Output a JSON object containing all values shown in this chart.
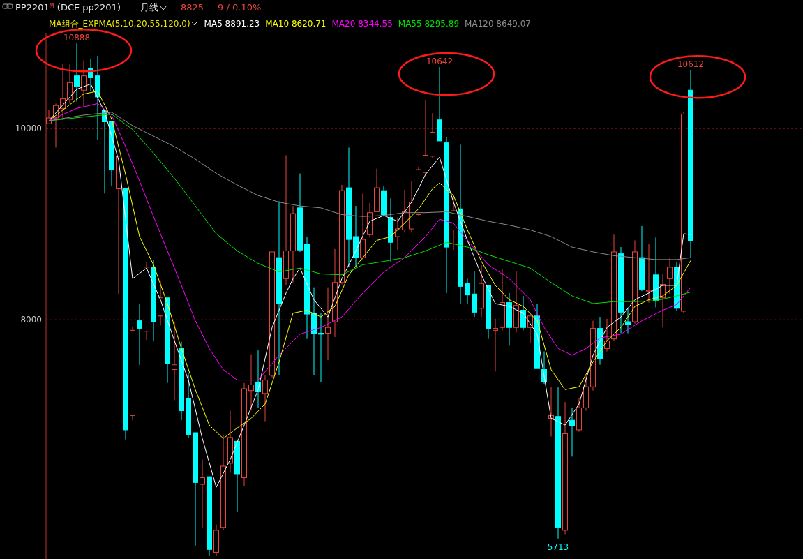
{
  "chart_data": {
    "type": "candlestick",
    "title": "PP2201$^{M}$ (DCE pp2201)",
    "subtitle": "月线",
    "legend_title": "MA组合_EXPMA(5,10,20,55,120,0)",
    "legend": "top left",
    "grid": "y",
    "ylim": [
      5500,
      11000
    ],
    "yticks": [
      8000,
      10000
    ],
    "annotations": [
      "8825",
      "9 / 0.10%",
      {
        "text": "10888",
        "y": 10888
      },
      {
        "text": "10642",
        "y": 10642
      },
      {
        "text": "10612",
        "y": 10612
      },
      {
        "text": "5713",
        "y": 5713
      }
    ],
    "categories": [
      null,
      null,
      null,
      null,
      null,
      null,
      null,
      null,
      null,
      null,
      null,
      null,
      null,
      null,
      null,
      null,
      null,
      null,
      null,
      null,
      null,
      null,
      null,
      null,
      null,
      null,
      null,
      null,
      null,
      null,
      null,
      null,
      null,
      null,
      null,
      null,
      null,
      null,
      null,
      null,
      null,
      null,
      null,
      null,
      null,
      null,
      null,
      null,
      null,
      null,
      null,
      null,
      null,
      null,
      null,
      null,
      null,
      null,
      null,
      null,
      null,
      null,
      null,
      null,
      null,
      null,
      null,
      null,
      null,
      null,
      null,
      null,
      null,
      null,
      null,
      null,
      null,
      null,
      null,
      null,
      null,
      null,
      null,
      null,
      null,
      null,
      null,
      null,
      null,
      null,
      null,
      null,
      null
    ],
    "ohlc": [
      [
        10050,
        10190,
        10040,
        10110
      ],
      [
        10110,
        10260,
        9800,
        10240
      ],
      [
        10210,
        10680,
        10090,
        10310
      ],
      [
        10300,
        10670,
        10260,
        10480
      ],
      [
        10550,
        10888,
        10280,
        10440
      ],
      [
        10400,
        10710,
        10230,
        10550
      ],
      [
        10630,
        10730,
        10390,
        10530
      ],
      [
        10550,
        10760,
        9880,
        10330
      ],
      [
        10190,
        10190,
        9320,
        10070
      ],
      [
        10070,
        10070,
        9400,
        9570
      ],
      [
        9370,
        9710,
        8270,
        9710
      ],
      [
        9370,
        9370,
        6750,
        6850
      ],
      [
        7000,
        7930,
        6950,
        7890
      ],
      [
        7990,
        8170,
        7530,
        7910
      ],
      [
        7880,
        8600,
        7790,
        8550
      ],
      [
        8550,
        8630,
        7780,
        7980
      ],
      [
        8040,
        8410,
        7940,
        8230
      ],
      [
        8230,
        8230,
        7340,
        7540
      ],
      [
        7480,
        7980,
        7160,
        7530
      ],
      [
        7700,
        7770,
        6950,
        7050
      ],
      [
        7180,
        7440,
        6760,
        6800
      ],
      [
        6820,
        6820,
        5640,
        6300
      ],
      [
        6280,
        6540,
        5830,
        6350
      ],
      [
        6360,
        6360,
        5530,
        5600
      ],
      [
        5570,
        5860,
        5530,
        5800
      ],
      [
        5830,
        6800,
        5800,
        6470
      ],
      [
        6500,
        7050,
        6400,
        6770
      ],
      [
        6730,
        6750,
        5990,
        6390
      ],
      [
        6350,
        7340,
        6260,
        7280
      ],
      [
        7260,
        7640,
        7050,
        7320
      ],
      [
        7350,
        7680,
        7080,
        7250
      ],
      [
        7230,
        7420,
        6940,
        7370
      ],
      [
        7420,
        8710,
        7400,
        8710
      ],
      [
        8650,
        9240,
        7420,
        8170
      ],
      [
        8430,
        9720,
        8360,
        8720
      ],
      [
        8720,
        9190,
        8390,
        9110
      ],
      [
        9170,
        9530,
        8710,
        8730
      ],
      [
        8790,
        8870,
        7800,
        8060
      ],
      [
        8070,
        8340,
        7420,
        7860
      ],
      [
        7860,
        8070,
        7350,
        7850
      ],
      [
        7860,
        8340,
        7580,
        7920
      ],
      [
        7980,
        8740,
        7820,
        8390
      ],
      [
        8390,
        9410,
        8370,
        9350
      ],
      [
        9380,
        9800,
        8550,
        8840
      ],
      [
        8870,
        9190,
        8550,
        8650
      ],
      [
        8650,
        9320,
        8620,
        8840
      ],
      [
        8890,
        9220,
        8860,
        9120
      ],
      [
        9130,
        9580,
        9120,
        9380
      ],
      [
        9350,
        9400,
        9080,
        9100
      ],
      [
        9070,
        9270,
        8600,
        8810
      ],
      [
        8870,
        9070,
        8730,
        8950
      ],
      [
        8940,
        9360,
        8910,
        9130
      ],
      [
        8950,
        9450,
        8910,
        9230
      ],
      [
        9100,
        9600,
        9080,
        9570
      ],
      [
        9540,
        10300,
        9520,
        9720
      ],
      [
        9710,
        10160,
        9690,
        9960
      ],
      [
        10090,
        10642,
        9860,
        9870
      ],
      [
        9850,
        9910,
        8280,
        8760
      ],
      [
        8940,
        9290,
        8730,
        9140
      ],
      [
        9160,
        9830,
        8170,
        8350
      ],
      [
        8380,
        8430,
        8170,
        8260
      ],
      [
        8270,
        8510,
        8030,
        8080
      ],
      [
        8120,
        8570,
        8030,
        8380
      ],
      [
        8360,
        8360,
        7800,
        7910
      ],
      [
        7890,
        8010,
        7460,
        7910
      ],
      [
        7920,
        8530,
        7890,
        8180
      ],
      [
        8180,
        8280,
        7730,
        7920
      ],
      [
        7920,
        8510,
        7870,
        8150
      ],
      [
        8100,
        8250,
        7890,
        7920
      ],
      [
        7920,
        8050,
        7760,
        8040
      ],
      [
        8040,
        8170,
        7480,
        7490
      ],
      [
        7480,
        7670,
        7330,
        7350
      ],
      [
        6970,
        7300,
        6780,
        7000
      ],
      [
        6990,
        7300,
        5713,
        5830
      ],
      [
        5800,
        7140,
        5760,
        6810
      ],
      [
        6950,
        7080,
        6570,
        6890
      ],
      [
        6850,
        7180,
        6830,
        7080
      ],
      [
        7080,
        7420,
        7050,
        7300
      ],
      [
        7300,
        7990,
        7260,
        7910
      ],
      [
        7910,
        8030,
        7530,
        7590
      ],
      [
        7700,
        8010,
        7670,
        7780
      ],
      [
        7800,
        8890,
        7780,
        8710
      ],
      [
        8690,
        8760,
        7860,
        8080
      ],
      [
        7980,
        8120,
        7860,
        7950
      ],
      [
        7980,
        8830,
        7960,
        8710
      ],
      [
        8650,
        8980,
        8300,
        8320
      ],
      [
        8300,
        8790,
        8180,
        8310
      ],
      [
        8470,
        8860,
        8130,
        8200
      ],
      [
        8230,
        8480,
        7920,
        8370
      ],
      [
        8430,
        8650,
        8270,
        8550
      ],
      [
        8550,
        8600,
        8090,
        8120
      ],
      [
        8090,
        10170,
        8070,
        10150
      ],
      [
        10400,
        10612,
        8650,
        8825
      ]
    ],
    "colors": [
      "#e8453c",
      "#e8453c",
      "#e8453c",
      "#e8453c",
      "#00ffff",
      "#e8453c",
      "#00ffff",
      "#00ffff",
      "#00ffff",
      "#00ffff",
      "#e8453c",
      "#00ffff",
      "#e8453c",
      "#00ffff",
      "#e8453c",
      "#00ffff",
      "#e8453c",
      "#00ffff",
      "#e8453c",
      "#00ffff",
      "#00ffff",
      "#00ffff",
      "#e8453c",
      "#00ffff",
      "#e8453c",
      "#e8453c",
      "#e8453c",
      "#00ffff",
      "#e8453c",
      "#e8453c",
      "#00ffff",
      "#e8453c",
      "#e8453c",
      "#00ffff",
      "#e8453c",
      "#e8453c",
      "#00ffff",
      "#00ffff",
      "#00ffff",
      "#00ffff",
      "#e8453c",
      "#e8453c",
      "#e8453c",
      "#00ffff",
      "#00ffff",
      "#e8453c",
      "#e8453c",
      "#e8453c",
      "#00ffff",
      "#00ffff",
      "#e8453c",
      "#e8453c",
      "#e8453c",
      "#e8453c",
      "#e8453c",
      "#e8453c",
      "#00ffff",
      "#00ffff",
      "#e8453c",
      "#00ffff",
      "#00ffff",
      "#00ffff",
      "#e8453c",
      "#00ffff",
      "#e8453c",
      "#e8453c",
      "#00ffff",
      "#e8453c",
      "#00ffff",
      "#e8453c",
      "#00ffff",
      "#00ffff",
      "#e8453c",
      "#00ffff",
      "#e8453c",
      "#00ffff",
      "#e8453c",
      "#e8453c",
      "#e8453c",
      "#00ffff",
      "#e8453c",
      "#e8453c",
      "#00ffff",
      "#00ffff",
      "#e8453c",
      "#00ffff",
      "#e8453c",
      "#00ffff",
      "#e8453c",
      "#e8453c",
      "#00ffff",
      "#e8453c",
      "#00ffff"
    ],
    "series": [
      {
        "type": "line",
        "name": "MA5 8891.23",
        "color": "#ffffff",
        "values": [
          10080,
          null,
          null,
          null,
          10410,
          null,
          10465,
          null,
          10175,
          null,
          9670,
          null,
          8430,
          null,
          8540,
          null,
          8210,
          null,
          7780,
          null,
          7370,
          null,
          6760,
          null,
          6250,
          null,
          6540,
          null,
          6900,
          null,
          7270,
          null,
          7920,
          null,
          8280,
          8430,
          8540,
          null,
          8210,
          null,
          8030,
          null,
          8430,
          null,
          8720,
          null,
          9030,
          null,
          9090,
          null,
          9030,
          null,
          9230,
          null,
          9520,
          null,
          9700,
          null,
          9230,
          null,
          8830,
          null,
          8470,
          null,
          8170,
          null,
          8140,
          null,
          8070,
          null,
          7850,
          null,
          6970,
          null,
          6900,
          null,
          7120,
          null,
          7630,
          null,
          7920,
          null,
          8030,
          null,
          8210,
          null,
          8280,
          null,
          8360,
          null,
          8360,
          8900,
          8891
        ]
      },
      {
        "type": "line",
        "name": "MA10 8620.71",
        "color": "#ffff00",
        "values": [
          10080,
          null,
          null,
          null,
          null,
          10360,
          null,
          10390,
          null,
          10100,
          null,
          9520,
          null,
          8870,
          null,
          8575,
          null,
          8170,
          null,
          7700,
          null,
          7270,
          null,
          6900,
          null,
          6760,
          null,
          6870,
          null,
          6970,
          null,
          7120,
          null,
          7560,
          null,
          8070,
          null,
          8100,
          null,
          8030,
          null,
          8140,
          null,
          8470,
          null,
          8650,
          null,
          8830,
          null,
          8870,
          null,
          9010,
          null,
          9160,
          null,
          9370,
          9430,
          null,
          9300,
          null,
          8940,
          null,
          8610,
          null,
          8360,
          null,
          8210,
          null,
          8140,
          null,
          7990,
          null,
          7480,
          null,
          7270,
          null,
          7300,
          null,
          7560,
          null,
          7780,
          null,
          7920,
          null,
          8140,
          null,
          8210,
          null,
          8250,
          null,
          8360,
          null,
          8620
        ]
      },
      {
        "type": "line",
        "name": "MA20 8344.55",
        "color": "#ff00ff",
        "values": [
          10080,
          null,
          null,
          null,
          10210,
          null,
          null,
          10260,
          null,
          10140,
          null,
          9810,
          null,
          9450,
          null,
          9080,
          null,
          8720,
          null,
          8360,
          null,
          7990,
          null,
          7700,
          null,
          7480,
          null,
          7370,
          null,
          null,
          7370,
          null,
          null,
          7630,
          null,
          null,
          7850,
          null,
          null,
          7920,
          null,
          null,
          8030,
          null,
          null,
          8280,
          null,
          null,
          8500,
          null,
          null,
          8650,
          null,
          null,
          8870,
          null,
          9050,
          null,
          9010,
          null,
          8830,
          null,
          null,
          8575,
          null,
          null,
          8430,
          null,
          null,
          8210,
          null,
          7920,
          null,
          7700,
          null,
          7630,
          null,
          7700,
          null,
          7810,
          null,
          null,
          7850,
          null,
          null,
          7990,
          null,
          null,
          8100,
          null,
          8160,
          null,
          8340
        ]
      },
      {
        "type": "line",
        "name": "MA55 8295.89",
        "color": "#00e000",
        "values": [
          10080,
          null,
          null,
          null,
          null,
          10120,
          null,
          null,
          null,
          10150,
          null,
          null,
          9990,
          null,
          null,
          9740,
          null,
          null,
          9480,
          null,
          null,
          9190,
          null,
          null,
          8900,
          null,
          null,
          8720,
          null,
          null,
          8590,
          null,
          null,
          8500,
          null,
          null,
          8540,
          null,
          null,
          8480,
          null,
          null,
          8470,
          null,
          null,
          8575,
          null,
          null,
          8610,
          null,
          null,
          8650,
          null,
          null,
          8720,
          null,
          null,
          8810,
          null,
          null,
          8760,
          null,
          null,
          8680,
          null,
          null,
          8610,
          null,
          null,
          8540,
          null,
          null,
          8390,
          null,
          null,
          8250,
          null,
          null,
          8170,
          null,
          null,
          8190,
          null,
          null,
          8190,
          null,
          null,
          8200,
          null,
          null,
          8250,
          null,
          8290
        ]
      },
      {
        "type": "line",
        "name": "MA120 8649.07",
        "color": "#8c8c8c",
        "values": [
          10080,
          null,
          null,
          null,
          null,
          10140,
          null,
          null,
          null,
          10170,
          null,
          null,
          10030,
          null,
          null,
          9920,
          null,
          null,
          9810,
          null,
          null,
          9680,
          null,
          null,
          9530,
          null,
          null,
          9410,
          null,
          null,
          9300,
          null,
          null,
          9230,
          null,
          null,
          9190,
          null,
          null,
          9170,
          null,
          null,
          9100,
          null,
          null,
          9080,
          null,
          null,
          9090,
          null,
          null,
          9120,
          null,
          null,
          9120,
          null,
          null,
          9130,
          null,
          null,
          9080,
          null,
          null,
          9030,
          null,
          null,
          8990,
          null,
          null,
          8940,
          null,
          null,
          8870,
          null,
          null,
          8760,
          null,
          null,
          8710,
          null,
          null,
          8670,
          null,
          null,
          8650,
          null,
          null,
          8630,
          null,
          null,
          8630,
          null,
          8650
        ]
      }
    ]
  }
}
